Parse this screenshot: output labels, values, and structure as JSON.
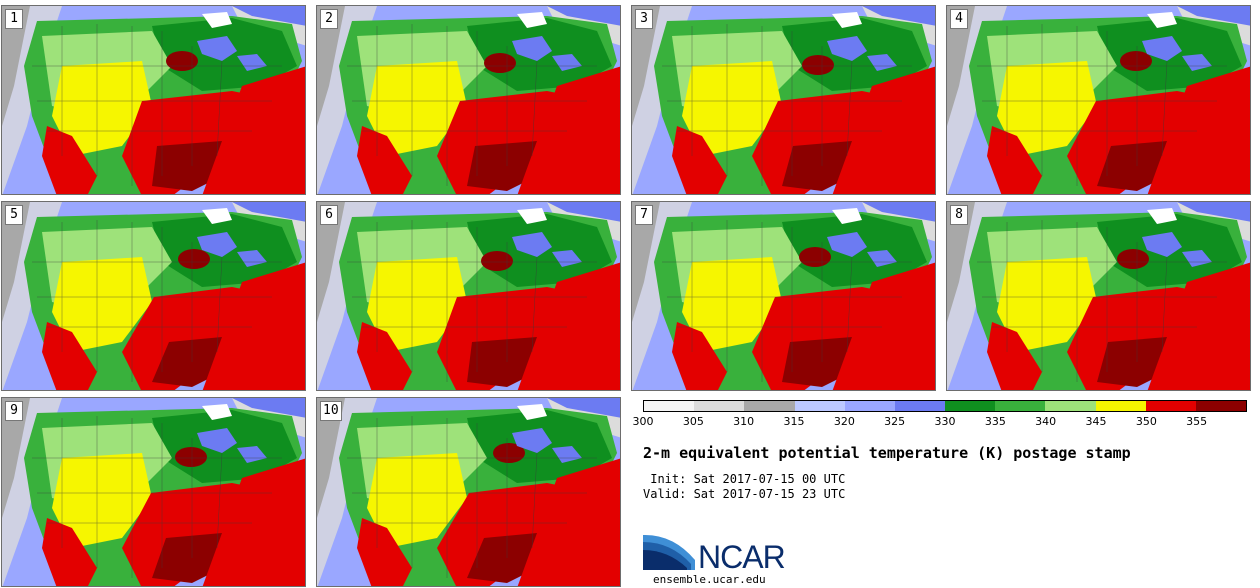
{
  "panels": [
    {
      "label": "1"
    },
    {
      "label": "2"
    },
    {
      "label": "3"
    },
    {
      "label": "4"
    },
    {
      "label": "5"
    },
    {
      "label": "6"
    },
    {
      "label": "7"
    },
    {
      "label": "8"
    },
    {
      "label": "9"
    },
    {
      "label": "10"
    }
  ],
  "colorbar": {
    "ticks": [
      "300",
      "305",
      "310",
      "315",
      "320",
      "325",
      "330",
      "335",
      "340",
      "345",
      "350",
      "355"
    ],
    "colors": [
      "#f5f5f5",
      "#dcdcdc",
      "#a8a8a8",
      "#bcc9ff",
      "#9aa7ff",
      "#6c7bf2",
      "#0f8f1f",
      "#39b13c",
      "#9ee27a",
      "#f6f600",
      "#e30000",
      "#8c0000"
    ]
  },
  "title": "2-m equivalent potential temperature (K) postage stamp",
  "init_line": " Init: Sat 2017-07-15 00 UTC",
  "valid_line": "Valid: Sat 2017-07-15 23 UTC",
  "logo": {
    "word": "NCAR",
    "url": "ensemble.ucar.edu"
  },
  "map_colors": {
    "ocean": "#9aa7ff",
    "deep_ocean": "#6c7bf2",
    "gray": "#a8a8a8",
    "light_gray": "#dcdcdc",
    "dark_green": "#0f8f1f",
    "green": "#39b13c",
    "light_green": "#9ee27a",
    "yellow": "#f6f600",
    "red": "#e30000",
    "dark_red": "#8c0000"
  }
}
